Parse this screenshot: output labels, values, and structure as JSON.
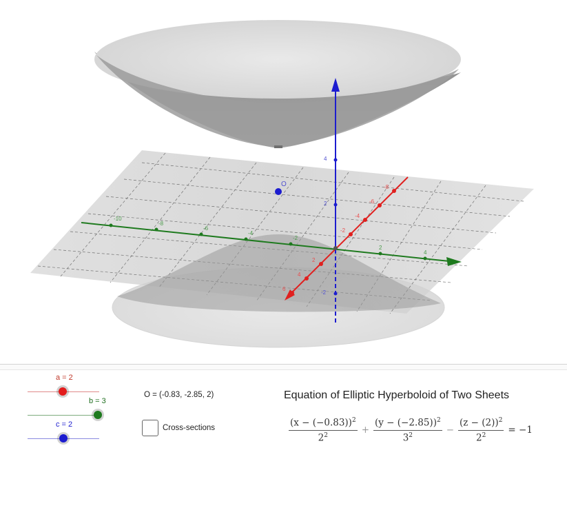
{
  "graphics": {
    "z_ticks": [
      "6",
      "4",
      "2",
      "-2"
    ],
    "y_ticks": [
      "-10",
      "-8",
      "-6",
      "-4",
      "-2",
      "2",
      "4"
    ],
    "x_ticks": [
      "-8",
      "-6",
      "-4",
      "-2",
      "2",
      "4",
      "6"
    ],
    "point_label": "O",
    "colors": {
      "x_axis": "#e0201f",
      "y_axis": "#1e7a1e",
      "z_axis": "#1c1ccf",
      "point": "#1c1ccf",
      "surface": "#9e9e9e"
    }
  },
  "sliders": [
    {
      "name": "a",
      "label": "a = 2",
      "value": 2,
      "color": "#d81f1f"
    },
    {
      "name": "b",
      "label": "b = 3",
      "value": 3,
      "color": "#1e7a1e"
    },
    {
      "name": "c",
      "label": "c = 2",
      "value": 2,
      "color": "#1c1ccf"
    }
  ],
  "point_text": "O = (-0.83, -2.85, 2)",
  "checkbox": {
    "label": "Cross-sections",
    "checked": false
  },
  "equation": {
    "title": "Equation of Elliptic Hyperboloid of Two Sheets",
    "term1_num": "(x − (−0.83))",
    "term1_den": "2",
    "term2_num": "(y − (−2.85))",
    "term2_den": "3",
    "term3_num": "(z − (2))",
    "term3_den": "2",
    "exp": "2",
    "plus": "+",
    "minus": "−",
    "rhs": "= −1"
  }
}
